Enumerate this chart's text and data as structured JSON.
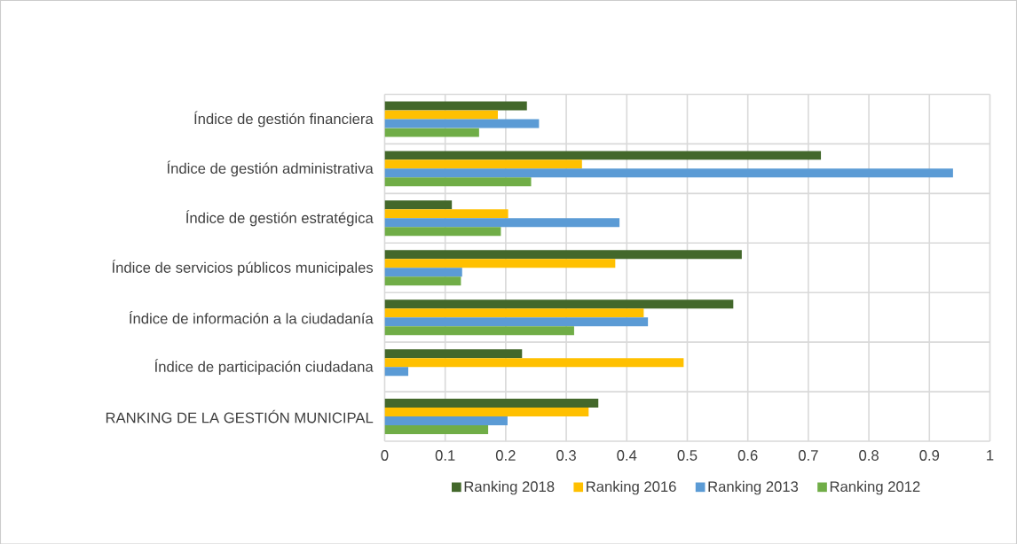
{
  "chart_data": {
    "type": "bar",
    "orientation": "horizontal",
    "categories": [
      "Índice de gestión financiera",
      "Índice de gestión administrativa",
      "Índice de gestión estratégica",
      "Índice de servicios públicos municipales",
      "Índice de información a la ciudadanía",
      "Índice de participación ciudadana",
      "RANKING DE LA GESTIÓN MUNICIPAL"
    ],
    "series": [
      {
        "name": "Ranking 2018",
        "color": "#43682b",
        "values": [
          0.235,
          0.721,
          0.111,
          0.59,
          0.576,
          0.227,
          0.353
        ]
      },
      {
        "name": "Ranking 2016",
        "color": "#ffc000",
        "values": [
          0.187,
          0.326,
          0.204,
          0.381,
          0.428,
          0.494,
          0.337
        ]
      },
      {
        "name": "Ranking 2013",
        "color": "#5b9bd5",
        "values": [
          0.255,
          0.939,
          0.388,
          0.128,
          0.435,
          0.039,
          0.203
        ]
      },
      {
        "name": "Ranking 2012",
        "color": "#70ad47",
        "values": [
          0.156,
          0.242,
          0.192,
          0.126,
          0.313,
          null,
          0.171
        ]
      }
    ],
    "xlim": [
      0,
      1
    ],
    "xticks": [
      0,
      0.1,
      0.2,
      0.3,
      0.4,
      0.5,
      0.6,
      0.7,
      0.8,
      0.9,
      1
    ],
    "grid": true,
    "legend": "bottom"
  }
}
